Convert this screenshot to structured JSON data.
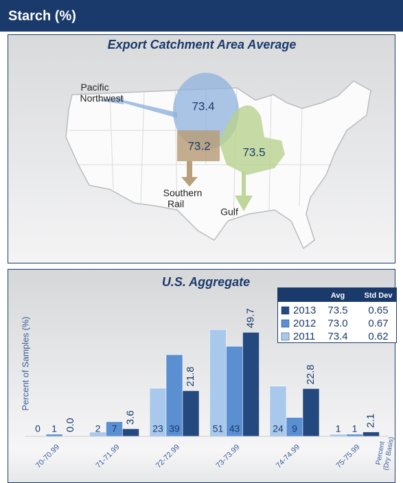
{
  "header": {
    "title": "Starch (%)"
  },
  "map": {
    "title": "Export Catchment Area Average",
    "regions": [
      {
        "value": 73.4,
        "label": [
          "Pacific",
          "Northwest"
        ]
      },
      {
        "value": 73.2,
        "label": [
          "Southern",
          "Rail"
        ]
      },
      {
        "value": 73.5,
        "label": [
          "Gulf"
        ]
      }
    ]
  },
  "chart_data": {
    "type": "bar",
    "title": "U.S. Aggregate",
    "y_label": "Percent of Samples (%)",
    "x_label": [
      "Percent",
      "(Dry Basis)"
    ],
    "categories": [
      "70-70.99",
      "71-71.99",
      "72-72.99",
      "73-73.99",
      "74-74.99",
      "75-75.99"
    ],
    "legend_headers": [
      "Avg",
      "Std Dev"
    ],
    "series": [
      {
        "name": "2011",
        "color": "#a9c9ec",
        "values": [
          0,
          2,
          23,
          51,
          24,
          1
        ],
        "avg": "73.4",
        "std_dev": "0.62"
      },
      {
        "name": "2012",
        "color": "#5a8fd2",
        "values": [
          1,
          7,
          39,
          43,
          9,
          1
        ],
        "avg": "73.0",
        "std_dev": "0.67"
      },
      {
        "name": "2013",
        "color": "#24497f",
        "values": [
          0,
          3.6,
          21.8,
          49.7,
          22.8,
          2.1
        ],
        "value_labels": [
          "0.0",
          "3.6",
          "21.8",
          "49.7",
          "22.8",
          "2.1"
        ],
        "avg": "73.5",
        "std_dev": "0.65"
      }
    ]
  }
}
